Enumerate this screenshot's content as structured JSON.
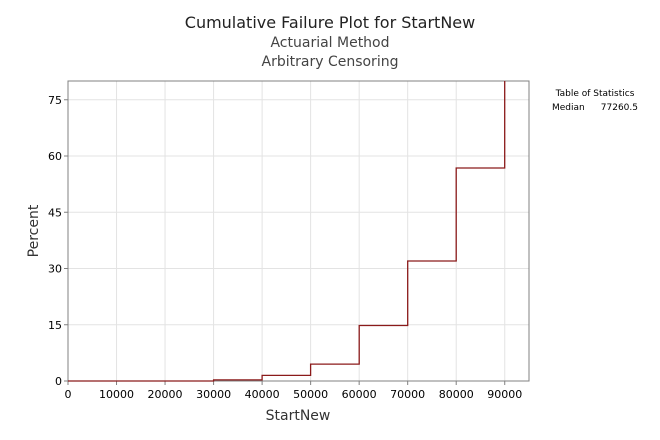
{
  "chart_data": {
    "type": "line",
    "title": "Cumulative Failure Plot for StartNew",
    "subtitles": [
      "Actuarial Method",
      "Arbitrary Censoring"
    ],
    "xlabel": "StartNew",
    "ylabel": "Percent",
    "xlim": [
      0,
      95000
    ],
    "ylim": [
      0,
      80
    ],
    "x_ticks": [
      0,
      10000,
      20000,
      30000,
      40000,
      50000,
      60000,
      70000,
      80000,
      90000
    ],
    "y_ticks": [
      0,
      15,
      30,
      45,
      60,
      75
    ],
    "grid": true,
    "series": [
      {
        "color": "#8b1a1a",
        "step": true,
        "x": [
          0,
          30000,
          40000,
          50000,
          60000,
          70000,
          80000,
          90000
        ],
        "y": [
          0,
          0.3,
          1.5,
          4.5,
          14.8,
          32.0,
          56.8,
          80
        ]
      }
    ],
    "stats_table": {
      "title": "Table of Statistics",
      "rows": [
        {
          "label": "Median",
          "value": "77260.5"
        }
      ]
    }
  }
}
